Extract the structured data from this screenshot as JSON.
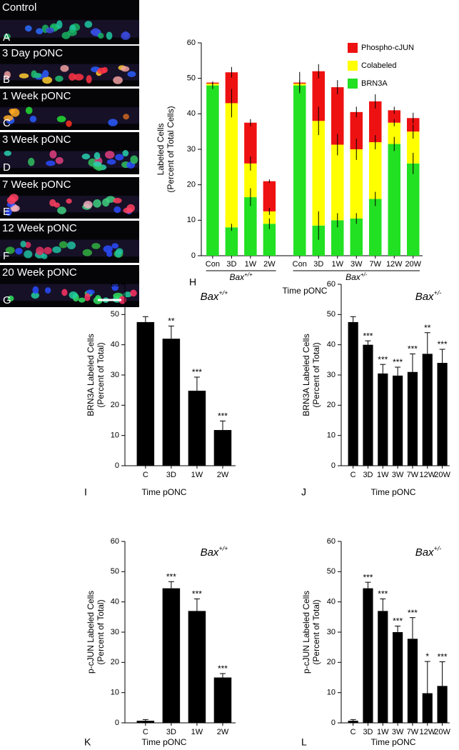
{
  "panels": [
    {
      "name": "Control",
      "letter": "A"
    },
    {
      "name": "3 Day pONC",
      "letter": "B"
    },
    {
      "name": "1 Week pONC",
      "letter": "C"
    },
    {
      "name": "3 Week pONC",
      "letter": "D"
    },
    {
      "name": "7 Week pONC",
      "letter": "E"
    },
    {
      "name": "12 Week pONC",
      "letter": "F"
    },
    {
      "name": "20 Week pONC",
      "letter": "G"
    }
  ],
  "chart_data": [
    {
      "type": "stacked_bar",
      "panel_label": "H",
      "ylabel": [
        "Labeled Cells",
        "(Percent of Total Cells)"
      ],
      "xlabel": "Time pONC",
      "groups": [
        {
          "name": "Bax",
          "sup": "+/+",
          "categories": [
            "Con",
            "3D",
            "1W",
            "2W"
          ]
        },
        {
          "name": "Bax",
          "sup": "+/-",
          "categories": [
            "Con",
            "3D",
            "1W",
            "3W",
            "7W",
            "12W",
            "20W"
          ]
        }
      ],
      "series": [
        {
          "name": "BRN3A",
          "color": "#22e022",
          "values": [
            48,
            8,
            16.5,
            9,
            48,
            8.5,
            10,
            10.5,
            16,
            31.5,
            26
          ],
          "errors": [
            1,
            1,
            2.5,
            1.5,
            1.5,
            4,
            2,
            1.5,
            2,
            2,
            3
          ]
        },
        {
          "name": "Colabeled",
          "color": "#ffff00",
          "values": [
            0.5,
            35,
            9.5,
            3.5,
            0.5,
            29.5,
            21.3,
            19.5,
            16,
            6,
            9
          ],
          "errors": [
            0.3,
            4,
            2,
            1,
            0.3,
            4,
            3,
            3,
            2,
            1,
            2
          ]
        },
        {
          "name": "Phospho-cJUN",
          "color": "#ee1111",
          "values": [
            0.3,
            8.7,
            11.5,
            8.5,
            0.3,
            14,
            16.2,
            10.5,
            11.5,
            3.5,
            3.8
          ],
          "errors": [
            0.3,
            1.5,
            1,
            0.5,
            3,
            2,
            2,
            1.5,
            2,
            1,
            1.5
          ]
        }
      ],
      "ylim": [
        0,
        60
      ],
      "yticks": [
        0,
        10,
        20,
        30,
        40,
        50,
        60
      ],
      "legend": "top-right"
    },
    {
      "type": "bar",
      "panel_label": "I",
      "title": "Bax",
      "title_sup": "+/+",
      "ylabel": [
        "BRN3A Labeled Cells",
        "(Percent of Total)"
      ],
      "xlabel": "Time pONC",
      "categories": [
        "C",
        "3D",
        "1W",
        "2W"
      ],
      "values": [
        47.5,
        42,
        24.8,
        11.8
      ],
      "errors": [
        1.8,
        4.2,
        4.5,
        3
      ],
      "annotations": [
        null,
        "**",
        "***",
        "***"
      ],
      "color": "#000000",
      "ylim": [
        0,
        60
      ],
      "yticks": [
        0,
        10,
        20,
        30,
        40,
        50,
        60
      ]
    },
    {
      "type": "bar",
      "panel_label": "J",
      "title": "Bax",
      "title_sup": "+/-",
      "ylabel": [
        "BRN3A Labeled Cells",
        "(Percent of Total)"
      ],
      "xlabel": "Time pONC",
      "categories": [
        "C",
        "3D",
        "1W",
        "3W",
        "7W",
        "12W",
        "20W"
      ],
      "values": [
        47.5,
        40,
        30.5,
        29.8,
        31,
        37,
        34
      ],
      "errors": [
        1.8,
        1.3,
        3,
        2.8,
        6,
        7,
        4.5
      ],
      "annotations": [
        null,
        "***",
        "***",
        "***",
        "***",
        "**",
        "***"
      ],
      "color": "#000000",
      "ylim": [
        0,
        60
      ],
      "yticks": [
        0,
        10,
        20,
        30,
        40,
        50,
        60
      ]
    },
    {
      "type": "bar",
      "panel_label": "K",
      "title": "Bax",
      "title_sup": "+/+",
      "ylabel": [
        "p-cJUN Labeled Cells",
        "(Percent of Total)"
      ],
      "xlabel": "Time pONC",
      "categories": [
        "C",
        "3D",
        "1W",
        "2W"
      ],
      "values": [
        0.7,
        44.5,
        37,
        15
      ],
      "errors": [
        0.4,
        2.2,
        4,
        1.3
      ],
      "annotations": [
        null,
        "***",
        "***",
        "***"
      ],
      "color": "#000000",
      "ylim": [
        0,
        60
      ],
      "yticks": [
        0,
        10,
        20,
        30,
        40,
        50,
        60
      ]
    },
    {
      "type": "bar",
      "panel_label": "L",
      "title": "Bax",
      "title_sup": "+/-",
      "ylabel": [
        "p-cJUN Labeled Cells",
        "(Percent of Total)"
      ],
      "xlabel": "Time pONC",
      "categories": [
        "C",
        "3D",
        "1W",
        "3W",
        "7W",
        "12W",
        "20W"
      ],
      "values": [
        0.7,
        44.5,
        37,
        30,
        27.8,
        9.8,
        12.2
      ],
      "errors": [
        0.4,
        2,
        4,
        2,
        7,
        10.5,
        8
      ],
      "annotations": [
        null,
        "***",
        "***",
        "***",
        "***",
        "*",
        "***"
      ],
      "color": "#000000",
      "ylim": [
        0,
        60
      ],
      "yticks": [
        0,
        10,
        20,
        30,
        40,
        50,
        60
      ]
    }
  ]
}
